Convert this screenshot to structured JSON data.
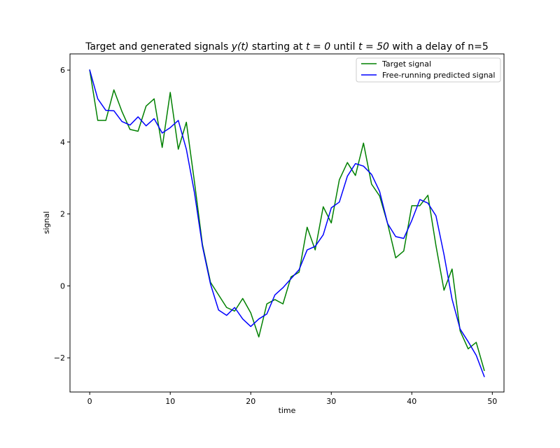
{
  "chart_data": {
    "type": "line",
    "title": {
      "prefix": "Target and generated signals ",
      "yt": "y(t)",
      "mid1": " starting at ",
      "t0": "t = 0",
      "mid2": " until ",
      "t50": "t = 50",
      "suffix": " with a delay of n=5"
    },
    "xlabel": "time",
    "ylabel": "signal",
    "xlim": [
      -2.45,
      51.45
    ],
    "ylim": [
      -2.95,
      6.45
    ],
    "xticks": [
      0,
      10,
      20,
      30,
      40,
      50
    ],
    "yticks": [
      -2,
      0,
      2,
      4,
      6
    ],
    "ytick_labels": [
      "−2",
      "0",
      "2",
      "4",
      "6"
    ],
    "grid": false,
    "legend_position": "upper right",
    "x": [
      0,
      1,
      2,
      3,
      4,
      5,
      6,
      7,
      8,
      9,
      10,
      11,
      12,
      13,
      14,
      15,
      16,
      17,
      18,
      19,
      20,
      21,
      22,
      23,
      24,
      25,
      26,
      27,
      28,
      29,
      30,
      31,
      32,
      33,
      34,
      35,
      36,
      37,
      38,
      39,
      40,
      41,
      42,
      43,
      44,
      45,
      46,
      47,
      48,
      49
    ],
    "series": [
      {
        "name": "Target signal",
        "color": "#008000",
        "values": [
          6.0,
          4.6,
          4.6,
          5.45,
          4.85,
          4.35,
          4.3,
          5.0,
          5.2,
          3.85,
          5.38,
          3.8,
          4.55,
          2.9,
          1.15,
          0.1,
          -0.25,
          -0.6,
          -0.7,
          -0.35,
          -0.75,
          -1.42,
          -0.5,
          -0.38,
          -0.5,
          0.25,
          0.38,
          1.63,
          1.0,
          2.2,
          1.75,
          2.95,
          3.43,
          3.07,
          3.97,
          2.83,
          2.5,
          1.73,
          0.78,
          0.97,
          2.23,
          2.23,
          2.52,
          1.12,
          -0.12,
          0.47,
          -1.25,
          -1.75,
          -1.57,
          -2.35
        ]
      },
      {
        "name": "Free-running predicted signal",
        "color": "#0000ff",
        "values": [
          6.0,
          5.2,
          4.88,
          4.87,
          4.57,
          4.47,
          4.7,
          4.45,
          4.65,
          4.25,
          4.4,
          4.6,
          3.8,
          2.6,
          1.1,
          0.05,
          -0.67,
          -0.82,
          -0.6,
          -0.92,
          -1.13,
          -0.92,
          -0.78,
          -0.25,
          -0.05,
          0.2,
          0.45,
          1.0,
          1.1,
          1.42,
          2.17,
          2.33,
          3.05,
          3.4,
          3.33,
          3.1,
          2.63,
          1.73,
          1.37,
          1.32,
          1.82,
          2.4,
          2.3,
          1.95,
          0.87,
          -0.37,
          -1.2,
          -1.55,
          -1.93,
          -2.52
        ]
      }
    ]
  }
}
